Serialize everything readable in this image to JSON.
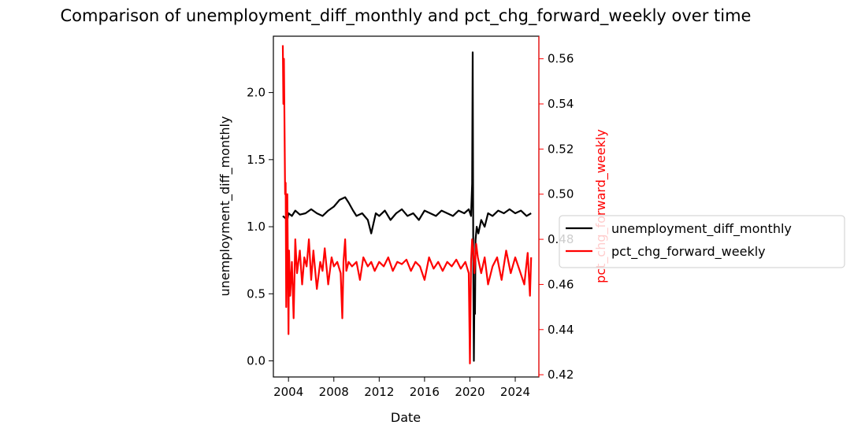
{
  "chart_data": {
    "type": "line",
    "title": "Comparison of unemployment_diff_monthly and pct_chg_forward_weekly over time",
    "xlabel": "Date",
    "ylabel_left": "unemployment_diff_monthly",
    "ylabel_right": "pct_chg_forward_weekly",
    "xlim": [
      "2002-09-01",
      "2026-02-01"
    ],
    "ylim_left": [
      -0.12,
      2.42
    ],
    "ylim_right": [
      0.419,
      0.57
    ],
    "x_ticks": [
      "2004",
      "2008",
      "2012",
      "2016",
      "2020",
      "2024"
    ],
    "y_ticks_left": [
      "0.0",
      "0.5",
      "1.0",
      "1.5",
      "2.0"
    ],
    "y_ticks_right": [
      "0.42",
      "0.44",
      "0.46",
      "0.48",
      "0.50",
      "0.52",
      "0.54",
      "0.56"
    ],
    "grid": false,
    "legend_position": "right",
    "colors": {
      "unemployment_diff_monthly": "#000000",
      "pct_chg_forward_weekly": "#ff0000"
    },
    "series": [
      {
        "name": "unemployment_diff_monthly",
        "axis": "left",
        "x": [
          2003.5,
          2003.9,
          2004.0,
          2004.3,
          2004.6,
          2005.0,
          2005.5,
          2006.0,
          2006.5,
          2007.0,
          2007.5,
          2008.0,
          2008.5,
          2009.0,
          2009.3,
          2009.7,
          2010.0,
          2010.5,
          2011.0,
          2011.3,
          2011.7,
          2012.0,
          2012.5,
          2013.0,
          2013.5,
          2014.0,
          2014.5,
          2015.0,
          2015.5,
          2016.0,
          2016.5,
          2017.0,
          2017.5,
          2018.0,
          2018.5,
          2019.0,
          2019.5,
          2019.9,
          2020.1,
          2020.2,
          2020.25,
          2020.3,
          2020.35,
          2020.4,
          2020.45,
          2020.5,
          2020.6,
          2020.75,
          2021.0,
          2021.3,
          2021.6,
          2022.0,
          2022.5,
          2023.0,
          2023.5,
          2024.0,
          2024.5,
          2025.0,
          2025.4
        ],
        "y": [
          1.08,
          1.05,
          1.1,
          1.08,
          1.12,
          1.09,
          1.1,
          1.13,
          1.1,
          1.08,
          1.12,
          1.15,
          1.2,
          1.22,
          1.18,
          1.12,
          1.08,
          1.1,
          1.05,
          0.95,
          1.1,
          1.08,
          1.12,
          1.05,
          1.1,
          1.13,
          1.08,
          1.1,
          1.05,
          1.12,
          1.1,
          1.08,
          1.12,
          1.1,
          1.08,
          1.12,
          1.1,
          1.13,
          1.08,
          1.32,
          2.3,
          0.65,
          0.0,
          0.5,
          0.35,
          0.9,
          1.0,
          0.95,
          1.05,
          1.0,
          1.1,
          1.08,
          1.12,
          1.1,
          1.13,
          1.1,
          1.12,
          1.08,
          1.1
        ]
      },
      {
        "name": "pct_chg_forward_weekly",
        "axis": "right",
        "x": [
          2003.5,
          2003.55,
          2003.6,
          2003.7,
          2003.75,
          2003.8,
          2003.85,
          2003.9,
          2004.0,
          2004.05,
          2004.15,
          2004.3,
          2004.45,
          2004.6,
          2004.75,
          2005.0,
          2005.2,
          2005.4,
          2005.6,
          2005.8,
          2006.0,
          2006.2,
          2006.5,
          2006.8,
          2007.0,
          2007.2,
          2007.5,
          2007.8,
          2008.0,
          2008.3,
          2008.6,
          2008.75,
          2008.85,
          2009.0,
          2009.1,
          2009.3,
          2009.6,
          2010.0,
          2010.3,
          2010.6,
          2011.0,
          2011.3,
          2011.6,
          2012.0,
          2012.4,
          2012.8,
          2013.2,
          2013.6,
          2014.0,
          2014.4,
          2014.8,
          2015.2,
          2015.6,
          2016.0,
          2016.4,
          2016.8,
          2017.2,
          2017.6,
          2018.0,
          2018.4,
          2018.8,
          2019.2,
          2019.6,
          2019.9,
          2020.0,
          2020.1,
          2020.2,
          2020.3,
          2020.4,
          2020.55,
          2020.7,
          2021.0,
          2021.3,
          2021.6,
          2022.0,
          2022.4,
          2022.8,
          2023.2,
          2023.6,
          2024.0,
          2024.4,
          2024.8,
          2025.1,
          2025.3,
          2025.4
        ],
        "y": [
          0.566,
          0.54,
          0.56,
          0.5,
          0.505,
          0.45,
          0.48,
          0.5,
          0.438,
          0.475,
          0.455,
          0.47,
          0.445,
          0.48,
          0.465,
          0.475,
          0.46,
          0.472,
          0.468,
          0.48,
          0.462,
          0.475,
          0.458,
          0.47,
          0.466,
          0.476,
          0.46,
          0.472,
          0.468,
          0.47,
          0.465,
          0.445,
          0.47,
          0.48,
          0.466,
          0.47,
          0.468,
          0.47,
          0.462,
          0.472,
          0.468,
          0.47,
          0.466,
          0.47,
          0.468,
          0.472,
          0.466,
          0.47,
          0.469,
          0.471,
          0.466,
          0.47,
          0.468,
          0.462,
          0.472,
          0.467,
          0.47,
          0.466,
          0.47,
          0.468,
          0.471,
          0.467,
          0.47,
          0.465,
          0.425,
          0.47,
          0.48,
          0.475,
          0.465,
          0.478,
          0.472,
          0.465,
          0.472,
          0.46,
          0.468,
          0.472,
          0.462,
          0.475,
          0.465,
          0.472,
          0.466,
          0.46,
          0.474,
          0.455,
          0.472
        ]
      }
    ]
  }
}
